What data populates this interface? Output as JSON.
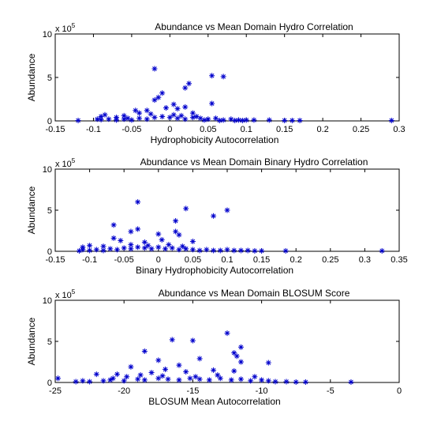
{
  "chart_data": [
    {
      "type": "scatter",
      "title": "Abundance vs Mean Domain Hydro Correlation",
      "xlabel": "Hydrophobicity Autocorrelation",
      "ylabel": "Abundance",
      "exponent_label": "x 10",
      "exponent_power": "5",
      "xlim": [
        -0.15,
        0.3
      ],
      "ylim": [
        0,
        10
      ],
      "xticks": [
        -0.15,
        -0.1,
        -0.05,
        0,
        0.05,
        0.1,
        0.15,
        0.2,
        0.25,
        0.3
      ],
      "xtick_labels": [
        "-0.15",
        "-0.1",
        "-0.05",
        "0",
        "0.05",
        "0.1",
        "0.15",
        "0.2",
        "0.25",
        "0.3"
      ],
      "yticks": [
        0,
        5,
        10
      ],
      "ytick_labels": [
        "0",
        "5",
        "10"
      ],
      "marker": "*",
      "color": "#0000cc",
      "points": [
        [
          -0.02,
          6.0
        ],
        [
          0.055,
          5.2
        ],
        [
          0.07,
          5.1
        ],
        [
          0.025,
          4.3
        ],
        [
          0.02,
          3.8
        ],
        [
          -0.01,
          3.2
        ],
        [
          -0.015,
          2.7
        ],
        [
          -0.02,
          2.4
        ],
        [
          0.055,
          2.0
        ],
        [
          0.005,
          1.9
        ],
        [
          0.02,
          1.6
        ],
        [
          -0.005,
          1.5
        ],
        [
          0.01,
          1.4
        ],
        [
          -0.045,
          1.2
        ],
        [
          -0.03,
          1.2
        ],
        [
          -0.085,
          0.7
        ],
        [
          -0.09,
          0.5
        ],
        [
          -0.06,
          0.6
        ],
        [
          -0.04,
          0.9
        ],
        [
          0.03,
          0.9
        ],
        [
          -0.095,
          0.2
        ],
        [
          -0.09,
          0.15
        ],
        [
          -0.08,
          0.2
        ],
        [
          -0.07,
          0.1
        ],
        [
          -0.06,
          0.2
        ],
        [
          -0.05,
          0.1
        ],
        [
          -0.04,
          0.3
        ],
        [
          -0.03,
          0.2
        ],
        [
          -0.02,
          0.4
        ],
        [
          -0.01,
          0.5
        ],
        [
          0,
          0.4
        ],
        [
          0.01,
          0.3
        ],
        [
          0.02,
          0.2
        ],
        [
          0.03,
          0.4
        ],
        [
          0.04,
          0.3
        ],
        [
          0.05,
          0.2
        ],
        [
          0.06,
          0.3
        ],
        [
          0.07,
          0.1
        ],
        [
          0.08,
          0.2
        ],
        [
          0.09,
          0.1
        ],
        [
          0.1,
          0.1
        ],
        [
          0.11,
          0.1
        ],
        [
          0.13,
          0.1
        ],
        [
          0.15,
          0.05
        ],
        [
          0.16,
          0.05
        ],
        [
          0.17,
          0.05
        ],
        [
          -0.12,
          0.05
        ],
        [
          -0.07,
          0.4
        ],
        [
          -0.055,
          0.3
        ],
        [
          0.015,
          0.6
        ],
        [
          -0.025,
          0.8
        ],
        [
          0.005,
          0.7
        ],
        [
          0.035,
          0.5
        ],
        [
          0.045,
          0.1
        ],
        [
          0.065,
          0.05
        ],
        [
          0.085,
          0.05
        ],
        [
          0.095,
          0.05
        ],
        [
          0.29,
          0.05
        ]
      ]
    },
    {
      "type": "scatter",
      "title": "Abundance vs Mean Domain Binary Hydro Correlation",
      "xlabel": "Binary Hydrophobicity Autocorrelation",
      "ylabel": "Abundance",
      "exponent_label": "x 10",
      "exponent_power": "5",
      "xlim": [
        -0.15,
        0.35
      ],
      "ylim": [
        0,
        10
      ],
      "xticks": [
        -0.15,
        -0.1,
        -0.05,
        0,
        0.05,
        0.1,
        0.15,
        0.2,
        0.25,
        0.3,
        0.35
      ],
      "xtick_labels": [
        "-0.15",
        "-0.1",
        "-0.05",
        "0",
        "0.05",
        "0.1",
        "0.15",
        "0.2",
        "0.25",
        "0.3",
        "0.35"
      ],
      "yticks": [
        0,
        5,
        10
      ],
      "ytick_labels": [
        "0",
        "5",
        "10"
      ],
      "marker": "*",
      "color": "#0000cc",
      "points": [
        [
          -0.03,
          6.0
        ],
        [
          0.04,
          5.2
        ],
        [
          0.1,
          5.0
        ],
        [
          0.08,
          4.3
        ],
        [
          0.025,
          3.7
        ],
        [
          -0.065,
          3.2
        ],
        [
          -0.03,
          2.7
        ],
        [
          -0.04,
          2.4
        ],
        [
          0.025,
          2.4
        ],
        [
          0,
          2.1
        ],
        [
          0.03,
          2.0
        ],
        [
          -0.065,
          1.6
        ],
        [
          -0.055,
          1.3
        ],
        [
          0.005,
          1.4
        ],
        [
          0.05,
          1.2
        ],
        [
          -0.02,
          1.1
        ],
        [
          -0.1,
          0.7
        ],
        [
          -0.11,
          0.5
        ],
        [
          -0.08,
          0.6
        ],
        [
          -0.04,
          0.8
        ],
        [
          -0.11,
          0.2
        ],
        [
          -0.1,
          0.1
        ],
        [
          -0.09,
          0.2
        ],
        [
          -0.08,
          0.1
        ],
        [
          -0.07,
          0.3
        ],
        [
          -0.06,
          0.2
        ],
        [
          -0.05,
          0.4
        ],
        [
          -0.04,
          0.3
        ],
        [
          -0.03,
          0.5
        ],
        [
          -0.02,
          0.4
        ],
        [
          -0.01,
          0.3
        ],
        [
          0,
          0.5
        ],
        [
          0.01,
          0.3
        ],
        [
          0.02,
          0.4
        ],
        [
          0.03,
          0.2
        ],
        [
          0.04,
          0.3
        ],
        [
          0.05,
          0.2
        ],
        [
          0.06,
          0.1
        ],
        [
          0.07,
          0.2
        ],
        [
          0.08,
          0.1
        ],
        [
          0.09,
          0.1
        ],
        [
          0.1,
          0.2
        ],
        [
          0.11,
          0.1
        ],
        [
          0.12,
          0.1
        ],
        [
          0.13,
          0.1
        ],
        [
          0.14,
          0.05
        ],
        [
          0.15,
          0.05
        ],
        [
          0.185,
          0.05
        ],
        [
          0.325,
          0.05
        ],
        [
          -0.115,
          0.05
        ],
        [
          0.015,
          0.8
        ],
        [
          0.035,
          0.6
        ],
        [
          -0.015,
          0.7
        ]
      ]
    },
    {
      "type": "scatter",
      "title": "Abundance vs Mean Domain BLOSUM Score",
      "xlabel": "BLOSUM Mean Autocorrelation",
      "ylabel": "Abundance",
      "exponent_label": "x 10",
      "exponent_power": "5",
      "xlim": [
        -25,
        0
      ],
      "ylim": [
        0,
        10
      ],
      "xticks": [
        -25,
        -20,
        -15,
        -10,
        -5,
        0
      ],
      "xtick_labels": [
        "-25",
        "-20",
        "-15",
        "-10",
        "-5",
        "0"
      ],
      "yticks": [
        0,
        5,
        10
      ],
      "ytick_labels": [
        "0",
        "5",
        "10"
      ],
      "marker": "*",
      "color": "#0000cc",
      "points": [
        [
          -12.5,
          6.0
        ],
        [
          -16.5,
          5.2
        ],
        [
          -15,
          5.1
        ],
        [
          -11.5,
          4.3
        ],
        [
          -18.5,
          3.8
        ],
        [
          -12,
          3.6
        ],
        [
          -11.8,
          3.2
        ],
        [
          -14.5,
          2.9
        ],
        [
          -17.5,
          2.7
        ],
        [
          -11.5,
          2.5
        ],
        [
          -9.5,
          2.4
        ],
        [
          -16,
          2.1
        ],
        [
          -19.5,
          1.9
        ],
        [
          -17,
          1.6
        ],
        [
          -13.5,
          1.5
        ],
        [
          -12,
          1.4
        ],
        [
          -15.5,
          1.3
        ],
        [
          -18,
          1.2
        ],
        [
          -20.5,
          1.0
        ],
        [
          -22,
          1.0
        ],
        [
          -24.8,
          0.5
        ],
        [
          -23.5,
          0.1
        ],
        [
          -23,
          0.2
        ],
        [
          -22.5,
          0.1
        ],
        [
          -21.5,
          0.2
        ],
        [
          -21,
          0.3
        ],
        [
          -20,
          0.2
        ],
        [
          -19,
          0.4
        ],
        [
          -18.5,
          0.3
        ],
        [
          -17.5,
          0.5
        ],
        [
          -16.8,
          0.4
        ],
        [
          -16,
          0.3
        ],
        [
          -15.2,
          0.5
        ],
        [
          -14.5,
          0.4
        ],
        [
          -13.8,
          0.3
        ],
        [
          -13,
          0.5
        ],
        [
          -12.2,
          0.3
        ],
        [
          -11.5,
          0.4
        ],
        [
          -10.8,
          0.2
        ],
        [
          -10,
          0.3
        ],
        [
          -9.5,
          0.2
        ],
        [
          -9,
          0.1
        ],
        [
          -8.2,
          0.1
        ],
        [
          -7.5,
          0.05
        ],
        [
          -6.8,
          0.05
        ],
        [
          -3.5,
          0.05
        ],
        [
          -19.8,
          0.7
        ],
        [
          -18.8,
          0.9
        ],
        [
          -17.2,
          0.8
        ],
        [
          -14.8,
          0.7
        ],
        [
          -13.2,
          0.9
        ],
        [
          -10.5,
          0.7
        ],
        [
          -20.8,
          0.5
        ]
      ]
    }
  ]
}
